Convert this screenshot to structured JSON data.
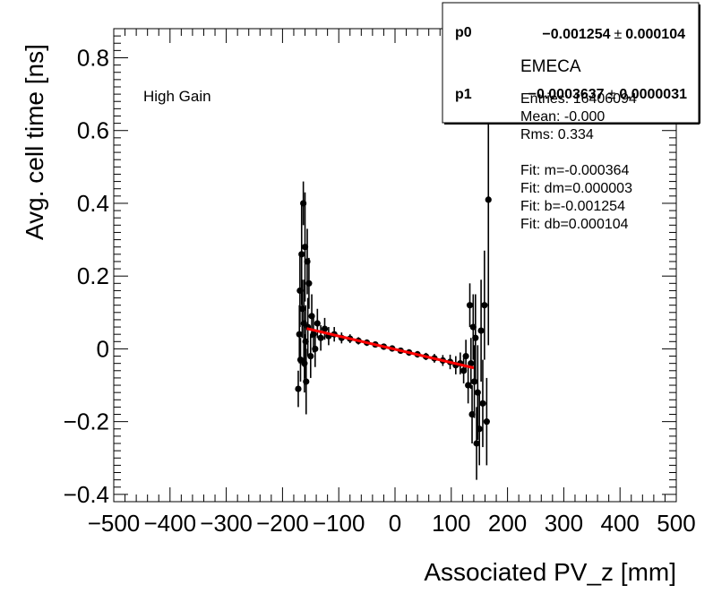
{
  "chart_data": {
    "type": "scatter",
    "title": "",
    "xlabel": "Associated PV_z [mm]",
    "ylabel": "Avg. cell time [ns]",
    "xlim": [
      -500,
      500
    ],
    "ylim": [
      -0.42,
      0.88
    ],
    "x_ticks": [
      -500,
      -400,
      -300,
      -200,
      -100,
      0,
      100,
      200,
      300,
      400,
      500
    ],
    "x_tick_labels": [
      "−500",
      "−400",
      "−300",
      "−200",
      "−100",
      "0",
      "100",
      "200",
      "300",
      "400",
      "500"
    ],
    "y_ticks": [
      -0.4,
      -0.2,
      0,
      0.2,
      0.4,
      0.6,
      0.8
    ],
    "y_tick_labels": [
      "−0.4",
      "−0.2",
      "0",
      "0.2",
      "0.4",
      "0.6",
      "0.8"
    ],
    "annotation": "High Gain",
    "fit": {
      "slope": -0.000364,
      "intercept": -0.001254,
      "x_range": [
        -157,
        140
      ],
      "color": "#ff0000"
    },
    "points": [
      {
        "x": -172,
        "y": -0.11,
        "err": 0.05
      },
      {
        "x": -170,
        "y": 0.04,
        "err": 0.08
      },
      {
        "x": -169,
        "y": 0.16,
        "err": 0.1
      },
      {
        "x": -168,
        "y": -0.03,
        "err": 0.06
      },
      {
        "x": -166,
        "y": 0.26,
        "err": 0.14
      },
      {
        "x": -165,
        "y": 0.11,
        "err": 0.08
      },
      {
        "x": -163,
        "y": 0.4,
        "err": 0.06
      },
      {
        "x": -162,
        "y": 0.07,
        "err": 0.12
      },
      {
        "x": -161,
        "y": -0.04,
        "err": 0.08
      },
      {
        "x": -160,
        "y": 0.28,
        "err": 0.15
      },
      {
        "x": -159,
        "y": 0.02,
        "err": 0.1
      },
      {
        "x": -158,
        "y": -0.09,
        "err": 0.09
      },
      {
        "x": -156,
        "y": 0.24,
        "err": 0.09
      },
      {
        "x": -155,
        "y": 0.06,
        "err": 0.08
      },
      {
        "x": -153,
        "y": 0.18,
        "err": 0.07
      },
      {
        "x": -150,
        "y": -0.02,
        "err": 0.06
      },
      {
        "x": -148,
        "y": 0.09,
        "err": 0.06
      },
      {
        "x": -145,
        "y": 0.04,
        "err": 0.05
      },
      {
        "x": -142,
        "y": 0.0,
        "err": 0.05
      },
      {
        "x": -138,
        "y": 0.07,
        "err": 0.04
      },
      {
        "x": -132,
        "y": 0.03,
        "err": 0.035
      },
      {
        "x": -125,
        "y": 0.055,
        "err": 0.03
      },
      {
        "x": -118,
        "y": 0.035,
        "err": 0.025
      },
      {
        "x": -108,
        "y": 0.04,
        "err": 0.02
      },
      {
        "x": -95,
        "y": 0.03,
        "err": 0.015
      },
      {
        "x": -80,
        "y": 0.028,
        "err": 0.012
      },
      {
        "x": -65,
        "y": 0.022,
        "err": 0.01
      },
      {
        "x": -50,
        "y": 0.017,
        "err": 0.009
      },
      {
        "x": -35,
        "y": 0.012,
        "err": 0.008
      },
      {
        "x": -20,
        "y": 0.006,
        "err": 0.008
      },
      {
        "x": -5,
        "y": 0.001,
        "err": 0.008
      },
      {
        "x": 10,
        "y": -0.005,
        "err": 0.008
      },
      {
        "x": 25,
        "y": -0.01,
        "err": 0.009
      },
      {
        "x": 40,
        "y": -0.015,
        "err": 0.009
      },
      {
        "x": 55,
        "y": -0.021,
        "err": 0.01
      },
      {
        "x": 70,
        "y": -0.026,
        "err": 0.012
      },
      {
        "x": 85,
        "y": -0.032,
        "err": 0.015
      },
      {
        "x": 98,
        "y": -0.036,
        "err": 0.02
      },
      {
        "x": 108,
        "y": -0.045,
        "err": 0.025
      },
      {
        "x": 116,
        "y": -0.04,
        "err": 0.03
      },
      {
        "x": 122,
        "y": -0.06,
        "err": 0.035
      },
      {
        "x": 126,
        "y": -0.02,
        "err": 0.045
      },
      {
        "x": 130,
        "y": -0.1,
        "err": 0.05
      },
      {
        "x": 133,
        "y": 0.12,
        "err": 0.06
      },
      {
        "x": 135,
        "y": -0.04,
        "err": 0.07
      },
      {
        "x": 137,
        "y": -0.18,
        "err": 0.08
      },
      {
        "x": 139,
        "y": 0.06,
        "err": 0.09
      },
      {
        "x": 141,
        "y": -0.09,
        "err": 0.1
      },
      {
        "x": 143,
        "y": 0.03,
        "err": 0.12
      },
      {
        "x": 145,
        "y": -0.26,
        "err": 0.1
      },
      {
        "x": 147,
        "y": -0.12,
        "err": 0.13
      },
      {
        "x": 150,
        "y": -0.22,
        "err": 0.1
      },
      {
        "x": 153,
        "y": 0.05,
        "err": 0.14
      },
      {
        "x": 156,
        "y": -0.15,
        "err": 0.12
      },
      {
        "x": 159,
        "y": 0.12,
        "err": 0.15
      },
      {
        "x": 163,
        "y": -0.2,
        "err": 0.12
      },
      {
        "x": 166,
        "y": 0.41,
        "err": 0.4
      }
    ]
  },
  "stats_box": {
    "p0_name": "p0",
    "p0_value": "−0.001254",
    "p0_pm": "±",
    "p0_error": "0.000104",
    "title": "EMECA",
    "p1_name": "p1",
    "p1_value": "−0.0003637",
    "p1_pm": "±",
    "p1_error": "0.0000031",
    "lines": [
      "Entries: 16406094",
      "Mean: -0.000",
      "Rms: 0.334",
      "",
      "Fit: m=-0.000364",
      "Fit: dm=0.000003",
      "Fit: b=-0.001254",
      "Fit: db=0.000104"
    ]
  }
}
